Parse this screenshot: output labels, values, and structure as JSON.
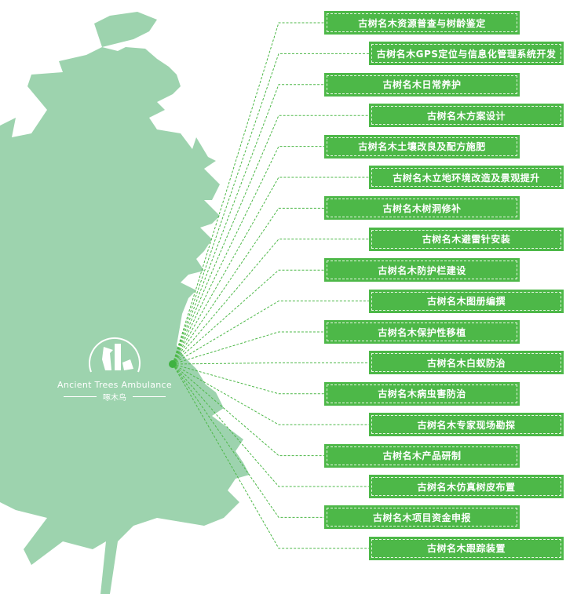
{
  "colors": {
    "tree": "#9dd3ae",
    "box": "#4db848",
    "line": "#4db848",
    "dot": "#3fb241"
  },
  "logo": {
    "english": "Ancient Trees Ambulance",
    "chinese": "啄木鸟",
    "icon": "woodpecker-tree-logo"
  },
  "items": [
    "古树名木资源普查与树龄鉴定",
    "古树名木GPS定位与信息化管理系统开发",
    "古树名木日常养护",
    "古树名木方案设计",
    "古树名木土壤改良及配方施肥",
    "古树名木立地环境改造及景观提升",
    "古树名木树洞修补",
    "古树名木避雷针安装",
    "古树名木防护栏建设",
    "古树名木图册编撰",
    "古树名木保护性移植",
    "古树名木白蚁防治",
    "古树名木病虫害防治",
    "古树名木专家现场勘探",
    "古树名木产品研制",
    "古树名木仿真树皮布置",
    "古树名木项目资金申报",
    "古树名木跟踪装置"
  ]
}
